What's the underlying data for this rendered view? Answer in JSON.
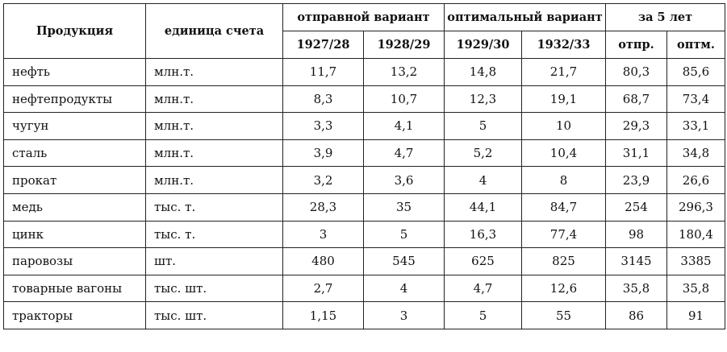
{
  "header": {
    "product": "Продукция",
    "unit": "единица счета",
    "group_initial": "отправной вариант",
    "group_optimal": "оптимальный вариант",
    "group_five": "за 5 лет",
    "years": [
      "1927/28",
      "1928/29",
      "1929/30",
      "1932/33"
    ],
    "five_cols": [
      "отпр.",
      "оптм."
    ]
  },
  "rows": [
    {
      "product": "нефть",
      "unit": "млн.т.",
      "values": [
        "11,7",
        "13,2",
        "14,8",
        "21,7",
        "80,3",
        "85,6"
      ]
    },
    {
      "product": "нефтепродукты",
      "unit": "млн.т.",
      "values": [
        "8,3",
        "10,7",
        "12,3",
        "19,1",
        "68,7",
        "73,4"
      ]
    },
    {
      "product": "чугун",
      "unit": "млн.т.",
      "values": [
        "3,3",
        "4,1",
        "5",
        "10",
        "29,3",
        "33,1"
      ]
    },
    {
      "product": "сталь",
      "unit": "млн.т.",
      "values": [
        "3,9",
        "4,7",
        "5,2",
        "10,4",
        "31,1",
        "34,8"
      ]
    },
    {
      "product": "прокат",
      "unit": "млн.т.",
      "values": [
        "3,2",
        "3,6",
        "4",
        "8",
        "23,9",
        "26,6"
      ]
    },
    {
      "product": "медь",
      "unit": "тыс. т.",
      "values": [
        "28,3",
        "35",
        "44,1",
        "84,7",
        "254",
        "296,3"
      ]
    },
    {
      "product": "цинк",
      "unit": "тыс. т.",
      "values": [
        "3",
        "5",
        "16,3",
        "77,4",
        "98",
        "180,4"
      ]
    },
    {
      "product": "паровозы",
      "unit": "шт.",
      "values": [
        "480",
        "545",
        "625",
        "825",
        "3145",
        "3385"
      ]
    },
    {
      "product": "товарные вагоны",
      "unit": "тыс. шт.",
      "values": [
        "2,7",
        "4",
        "4,7",
        "12,6",
        "35,8",
        "35,8"
      ]
    },
    {
      "product": "тракторы",
      "unit": "тыс. шт.",
      "values": [
        "1,15",
        "3",
        "5",
        "55",
        "86",
        "91"
      ]
    }
  ]
}
